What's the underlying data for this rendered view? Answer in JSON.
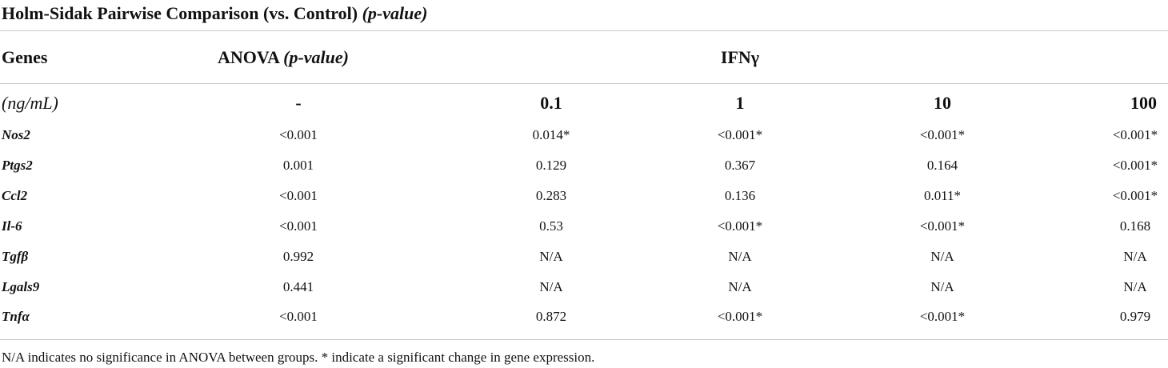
{
  "title": {
    "main": "Holm-Sidak Pairwise Comparison (vs. Control)",
    "italic": "(p-value)"
  },
  "header": {
    "genes": "Genes",
    "anova": "ANOVA",
    "anova_italic": "(p-value)",
    "ifn": "IFNγ"
  },
  "subheader": {
    "unit": "(ng/mL)",
    "doses": [
      "-",
      "0.1",
      "1",
      "10",
      "100"
    ]
  },
  "rows": [
    {
      "gene": "Nos2",
      "values": [
        "<0.001",
        "0.014*",
        "<0.001*",
        "<0.001*",
        "<0.001*"
      ]
    },
    {
      "gene": "Ptgs2",
      "values": [
        "0.001",
        "0.129",
        "0.367",
        "0.164",
        "<0.001*"
      ]
    },
    {
      "gene": "Ccl2",
      "values": [
        "<0.001",
        "0.283",
        "0.136",
        "0.011*",
        "<0.001*"
      ]
    },
    {
      "gene": "Il-6",
      "values": [
        "<0.001",
        "0.53",
        "<0.001*",
        "<0.001*",
        "0.168"
      ]
    },
    {
      "gene": "Tgfβ",
      "values": [
        "0.992",
        "N/A",
        "N/A",
        "N/A",
        "N/A"
      ]
    },
    {
      "gene": "Lgals9",
      "values": [
        "0.441",
        "N/A",
        "N/A",
        "N/A",
        "N/A"
      ]
    },
    {
      "gene": "Tnfα",
      "values": [
        "<0.001",
        "0.872",
        "<0.001*",
        "<0.001*",
        "0.979"
      ]
    }
  ],
  "footnote": "N/A indicates no significance in ANOVA between groups. * indicate a significant change in gene expression."
}
